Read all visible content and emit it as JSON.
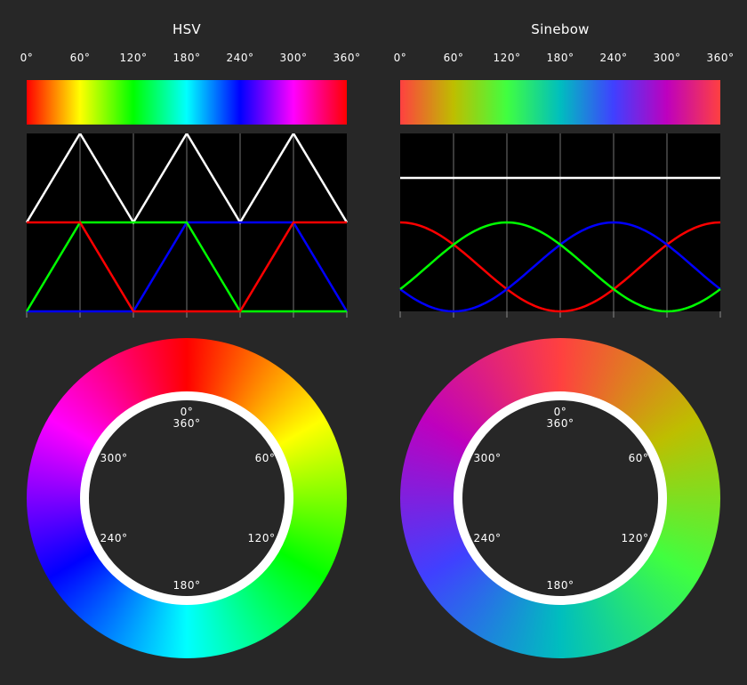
{
  "panels": [
    {
      "id": "hsv",
      "title": "HSV",
      "tick_labels": [
        "0°",
        "60°",
        "120°",
        "180°",
        "240°",
        "300°",
        "360°"
      ],
      "wheel_labels": {
        "top_a": "0°",
        "top_b": "360°",
        "h60": "60°",
        "h120": "120°",
        "h180": "180°",
        "h240": "240°",
        "h300": "300°"
      },
      "gradient_stops": [
        "#ff0000",
        "#ffff00",
        "#00ff00",
        "#00ffff",
        "#0000ff",
        "#ff00ff",
        "#ff0000"
      ]
    },
    {
      "id": "sinebow",
      "title": "Sinebow",
      "tick_labels": [
        "0°",
        "60°",
        "120°",
        "180°",
        "240°",
        "300°",
        "360°"
      ],
      "wheel_labels": {
        "top_a": "0°",
        "top_b": "360°",
        "h60": "60°",
        "h120": "120°",
        "h180": "180°",
        "h240": "240°",
        "h300": "300°"
      },
      "gradient_stops": [
        "#ff4040",
        "#bebe00",
        "#40ff40",
        "#00bebe",
        "#4040ff",
        "#be00be",
        "#ff4040"
      ]
    }
  ],
  "colors": {
    "background": "#272727",
    "red": "#ff0000",
    "green": "#00ff00",
    "blue": "#0000ff",
    "white": "#ffffff"
  }
}
